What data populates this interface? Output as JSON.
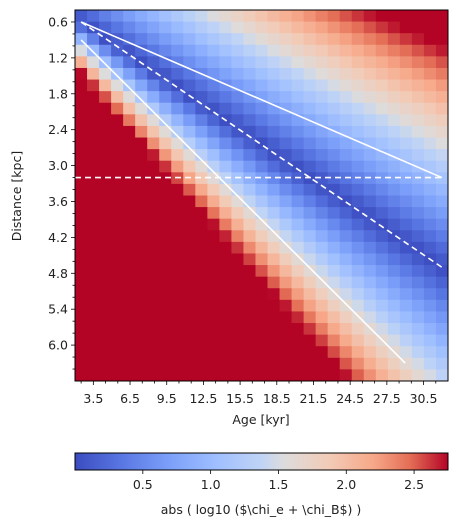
{
  "chart_data": {
    "type": "heatmap",
    "xlabel": "Age [kyr]",
    "ylabel": "Distance [kpc]",
    "x_range": [
      2.0,
      32.5
    ],
    "y_range": [
      0.4,
      6.6
    ],
    "y_inverted": true,
    "grid": false,
    "colormap": "coolwarm",
    "colors": {
      "low": "#3b4cc0",
      "mid": "#dddcdc",
      "high": "#b40426"
    },
    "x_ticks": [
      3.5,
      6.5,
      9.5,
      12.5,
      15.5,
      18.5,
      21.5,
      24.5,
      27.5,
      30.5
    ],
    "x_tick_labels": [
      "3.5",
      "6.5",
      "9.5",
      "12.5",
      "15.5",
      "18.5",
      "21.5",
      "24.5",
      "27.5",
      "30.5"
    ],
    "y_ticks": [
      0.6,
      1.2,
      1.8,
      2.4,
      3.0,
      3.6,
      4.2,
      4.8,
      5.4,
      6.0
    ],
    "y_tick_labels": [
      "0.6",
      "1.2",
      "1.8",
      "2.4",
      "3.0",
      "3.6",
      "4.2",
      "4.8",
      "5.4",
      "6.0"
    ],
    "grid_cells": {
      "x_count": 31,
      "y_count": 32
    },
    "colorbar": {
      "label": "abs ( log10 ($\\chi_e + \\chi_B$) )",
      "range": [
        0.0,
        2.75
      ],
      "ticks": [
        0.5,
        1.0,
        1.5,
        2.0,
        2.5
      ],
      "tick_labels": [
        "0.5",
        "1.0",
        "1.5",
        "2.0",
        "2.5"
      ],
      "position": "bottom"
    },
    "overlay_lines": [
      {
        "style": "solid",
        "color": "#ffffff",
        "points": [
          [
            2.5,
            0.6
          ],
          [
            32.0,
            3.2
          ]
        ]
      },
      {
        "style": "dashed",
        "color": "#ffffff",
        "points": [
          [
            2.5,
            0.6
          ],
          [
            32.0,
            4.7
          ]
        ]
      },
      {
        "style": "solid",
        "color": "#ffffff",
        "points": [
          [
            2.5,
            0.9
          ],
          [
            29.0,
            6.3
          ]
        ]
      },
      {
        "style": "dashed",
        "color": "#ffffff",
        "points": [
          [
            2.0,
            3.2
          ],
          [
            32.0,
            3.2
          ]
        ]
      }
    ]
  }
}
